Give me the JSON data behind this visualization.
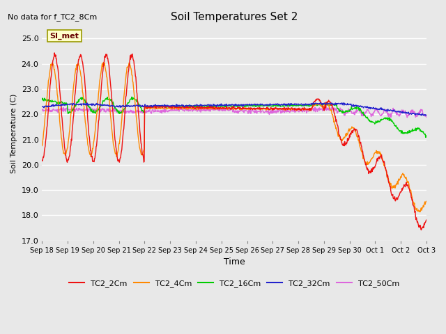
{
  "title": "Soil Temperatures Set 2",
  "subtitle": "No data for f_TC2_8Cm",
  "xlabel": "Time",
  "ylabel": "Soil Temperature (C)",
  "ylim": [
    17.0,
    25.5
  ],
  "yticks": [
    17.0,
    18.0,
    19.0,
    20.0,
    21.0,
    22.0,
    23.0,
    24.0,
    25.0
  ],
  "bg_color": "#e8e8e8",
  "plot_bg": "#e8e8e8",
  "legend_label": "SI_met",
  "series_colors": {
    "TC2_2Cm": "#ee1111",
    "TC2_4Cm": "#ff8800",
    "TC2_16Cm": "#00cc00",
    "TC2_32Cm": "#2222cc",
    "TC2_50Cm": "#dd66dd"
  },
  "x_tick_labels": [
    "Sep 18",
    "Sep 19",
    "Sep 20",
    "Sep 21",
    "Sep 22",
    "Sep 23",
    "Sep 24",
    "Sep 25",
    "Sep 26",
    "Sep 27",
    "Sep 28",
    "Sep 29",
    "Sep 30",
    "Oct 1",
    "Oct 2",
    "Oct 3"
  ],
  "num_points": 960
}
